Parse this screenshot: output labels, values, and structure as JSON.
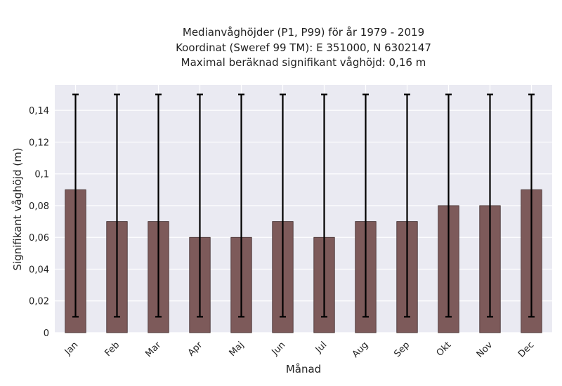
{
  "chart_data": {
    "type": "bar",
    "title_lines": [
      "Medianvåghöjder (P1, P99) för år 1979 - 2019",
      "Koordinat (Sweref 99 TM): E 351000, N 6302147",
      "Maximal beräknad signifikant våghöjd: 0,16 m"
    ],
    "xlabel": "Månad",
    "ylabel": "Signifikant våghöjd (m)",
    "categories": [
      "Jan",
      "Feb",
      "Mar",
      "Apr",
      "Maj",
      "Jun",
      "Jul",
      "Aug",
      "Sep",
      "Okt",
      "Nov",
      "Dec"
    ],
    "values": [
      0.09,
      0.07,
      0.07,
      0.06,
      0.06,
      0.07,
      0.06,
      0.07,
      0.07,
      0.08,
      0.08,
      0.09
    ],
    "p1": [
      0.01,
      0.01,
      0.01,
      0.01,
      0.01,
      0.01,
      0.01,
      0.01,
      0.01,
      0.01,
      0.01,
      0.01
    ],
    "p99": [
      0.15,
      0.15,
      0.15,
      0.15,
      0.15,
      0.15,
      0.15,
      0.15,
      0.15,
      0.15,
      0.15,
      0.15
    ],
    "ylim": [
      0,
      0.156
    ],
    "yticks": [
      0,
      0.02,
      0.04,
      0.06,
      0.08,
      0.1,
      0.12,
      0.14
    ],
    "ytick_labels": [
      "0",
      "0,02",
      "0,04",
      "0,06",
      "0,08",
      "0,1",
      "0,12",
      "0,14"
    ],
    "grid": true,
    "colors": {
      "bar_fill": "#7d5a5a",
      "bar_edge": "#3e2a2a",
      "error_bar": "#000000",
      "plot_background": "#eaeaf2",
      "grid": "#ffffff"
    }
  }
}
